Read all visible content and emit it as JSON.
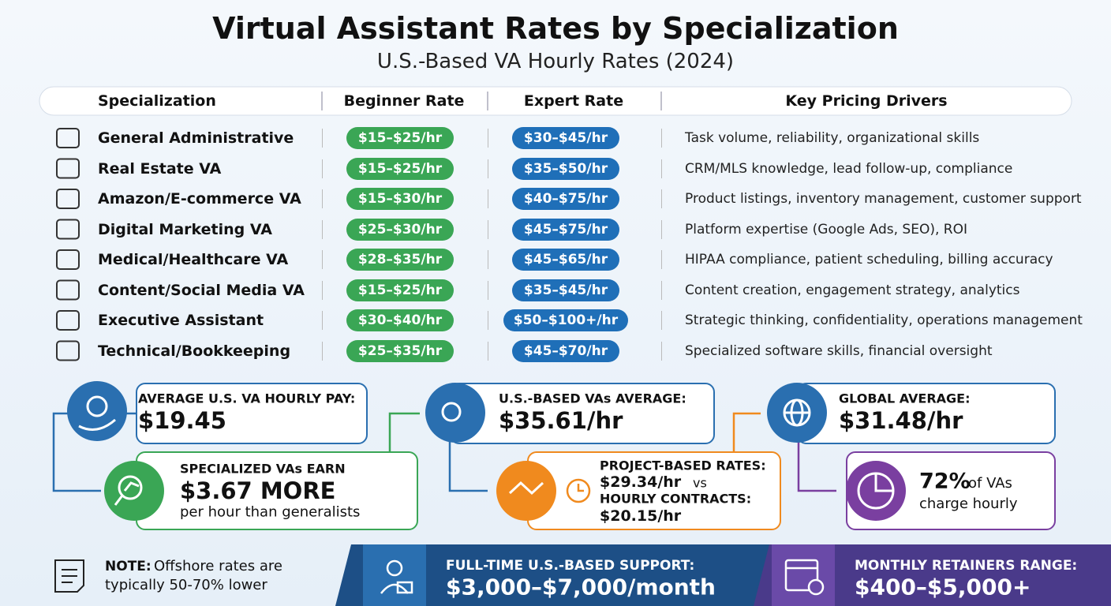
{
  "header": {
    "title": "Virtual Assistant Rates by Specialization",
    "subtitle": "U.S.-Based VA Hourly Rates (2024)"
  },
  "table": {
    "columns": [
      "Specialization",
      "Beginner Rate",
      "Expert Rate",
      "Key Pricing Drivers"
    ],
    "rows": [
      [
        "General Administrative",
        "$15–$25/hr",
        "$30–$45/hr",
        "Task volume, reliability, organizational skills"
      ],
      [
        "Real Estate VA",
        "$15–$25/hr",
        "$35–$50/hr",
        "CRM/MLS knowledge, lead follow-up, compliance"
      ],
      [
        "Amazon/E-commerce VA",
        "$15–$30/hr",
        "$40–$75/hr",
        "Product listings, inventory management, customer support"
      ],
      [
        "Digital Marketing VA",
        "$25–$30/hr",
        "$45–$75/hr",
        "Platform expertise (Google Ads, SEO), ROI"
      ],
      [
        "Medical/Healthcare VA",
        "$28–$35/hr",
        "$45–$65/hr",
        "HIPAA compliance, patient scheduling, billing accuracy"
      ],
      [
        "Content/Social Media VA",
        "$15–$25/hr",
        "$35–$45/hr",
        "Content creation, engagement strategy, analytics"
      ],
      [
        "Executive Assistant",
        "$30–$40/hr",
        "$50–$100+/hr",
        "Strategic thinking, confidentiality, operations management"
      ],
      [
        "Technical/Bookkeeping",
        "$25–$35/hr",
        "$45–$70/hr",
        "Specialized software skills, financial oversight"
      ]
    ]
  },
  "cards": [
    {
      "label": "AVERAGE U.S. VA HOURLY PAY:",
      "value": "$19.45"
    },
    {
      "label": "SPECIALIZED VAs EARN",
      "value": "$3.67 MORE",
      "text": "per hour than generalists"
    },
    {
      "label": "U.S.-BASED VAs AVERAGE:",
      "value": "$35.61/hr"
    },
    {
      "label": "PROJECT-BASED RATES:",
      "value": "$29.34/hr",
      "joiner": "vs",
      "label2": "HOURLY CONTRACTS:",
      "value2": "$20.15/hr"
    },
    {
      "label": "GLOBAL AVERAGE:",
      "value": "$31.48/hr"
    },
    {
      "value": "72%",
      "text": "of VAs charge hourly"
    }
  ],
  "note": {
    "label": "NOTE:",
    "text": "Offshore rates are typically 50-70% lower"
  },
  "footer": [
    {
      "label": "FULL-TIME U.S.-BASED SUPPORT:",
      "value": "$3,000–$7,000/month"
    },
    {
      "label": "MONTHLY RETAINERS RANGE:",
      "value": "$400–$5,000+"
    }
  ]
}
